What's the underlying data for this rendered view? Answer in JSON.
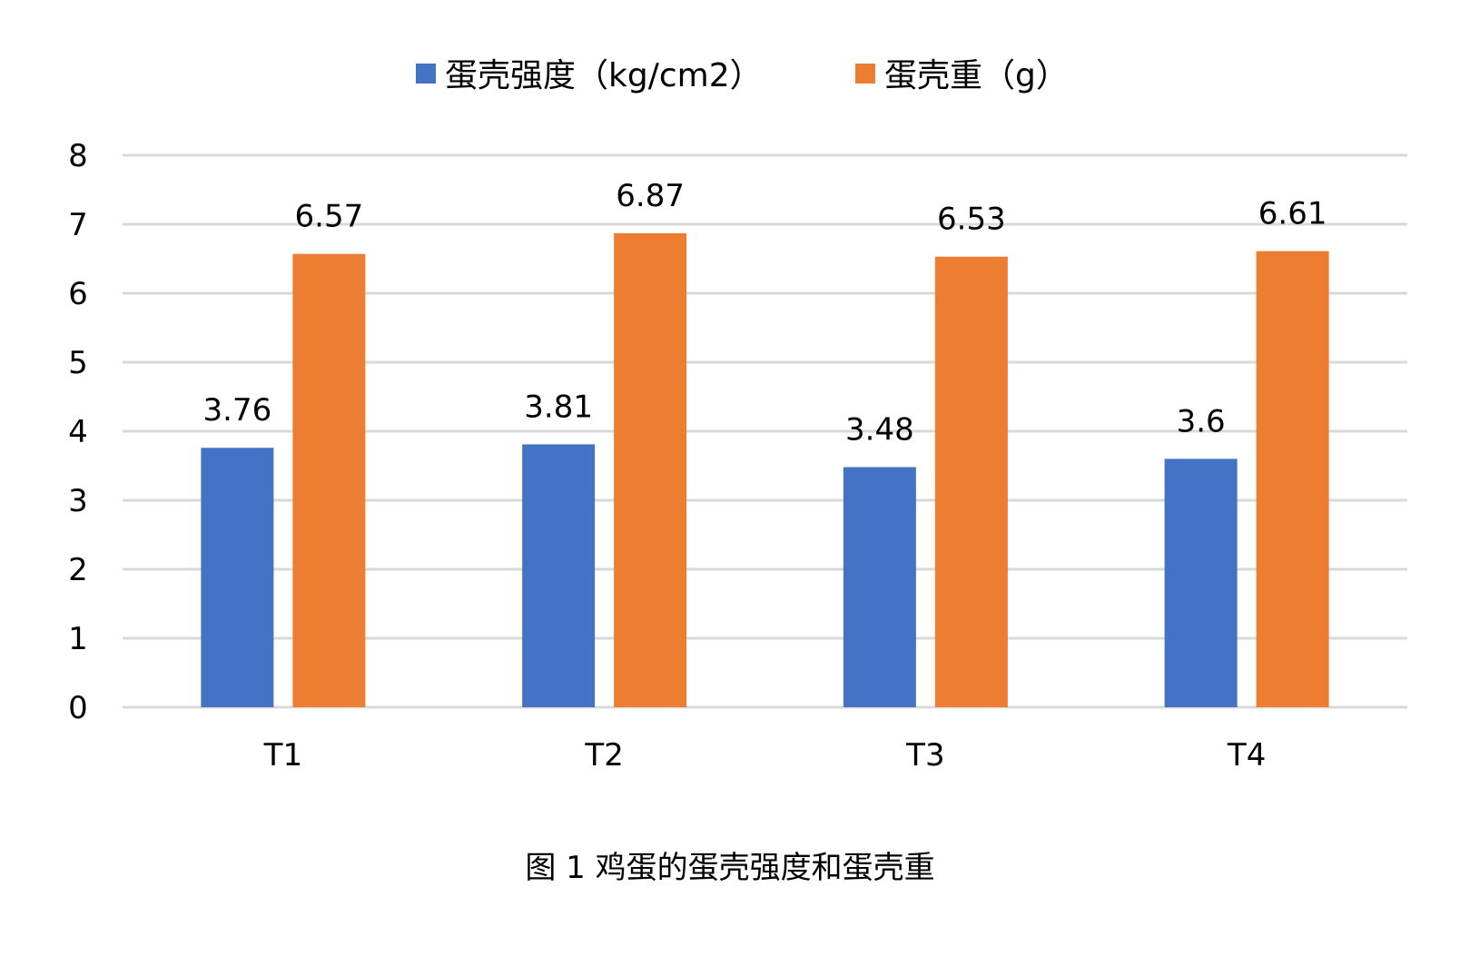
{
  "chart_data": {
    "type": "bar",
    "title": "",
    "xlabel": "",
    "ylabel": "",
    "categories": [
      "T1",
      "T2",
      "T3",
      "T4"
    ],
    "series": [
      {
        "name": "蛋壳强度（kg/cm2）",
        "values": [
          3.76,
          3.81,
          3.48,
          3.6
        ],
        "labels": [
          "3.76",
          "3.81",
          "3.48",
          "3.6"
        ],
        "color": "#4472C4"
      },
      {
        "name": "蛋壳重（g）",
        "values": [
          6.57,
          6.87,
          6.53,
          6.61
        ],
        "labels": [
          "6.57",
          "6.87",
          "6.53",
          "6.61"
        ],
        "color": "#ED7D31"
      }
    ],
    "ylim": [
      0,
      8
    ],
    "yticks": [
      "0",
      "1",
      "2",
      "3",
      "4",
      "5",
      "6",
      "7",
      "8"
    ],
    "grid": true,
    "gridColor": "#D9D9D9",
    "legend": "top-center"
  },
  "caption": "图 1  鸡蛋的蛋壳强度和蛋壳重"
}
